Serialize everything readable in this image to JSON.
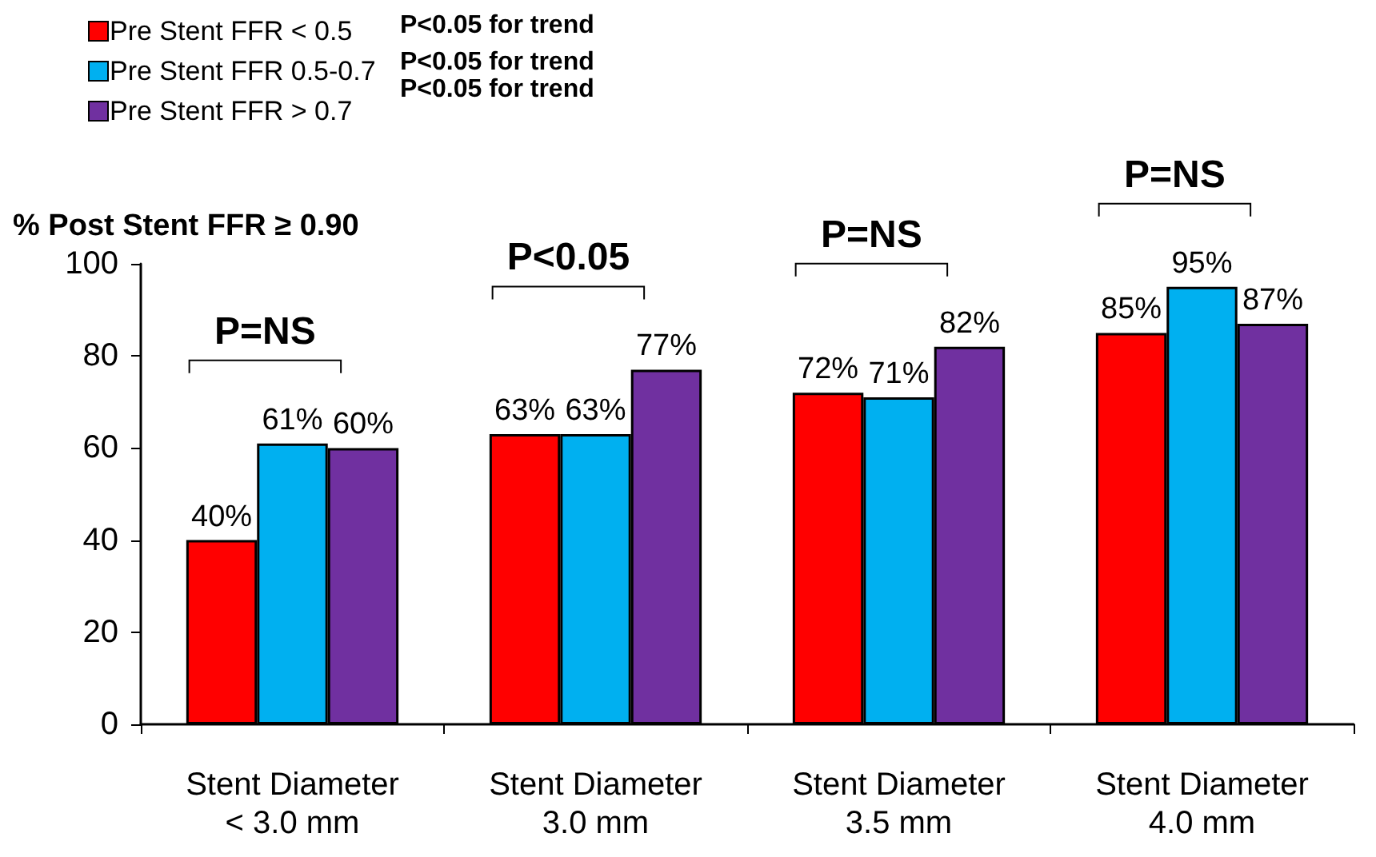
{
  "chart_data": {
    "type": "bar",
    "ylabel": "% Post Stent FFR ≥ 0.90",
    "categories": [
      "Stent Diameter\n< 3.0 mm",
      "Stent Diameter\n3.0 mm",
      "Stent Diameter\n3.5 mm",
      "Stent Diameter\n4.0 mm"
    ],
    "series": [
      {
        "name": "Pre Stent FFR < 0.5",
        "color": "#ff0000",
        "values": [
          40,
          63,
          72,
          85
        ],
        "value_labels": [
          "40%",
          "63%",
          "72%",
          "85%"
        ]
      },
      {
        "name": "Pre Stent FFR 0.5-0.7",
        "color": "#00b0f0",
        "values": [
          61,
          63,
          71,
          95
        ],
        "value_labels": [
          "61%",
          "63%",
          "71%",
          "95%"
        ]
      },
      {
        "name": "Pre Stent FFR > 0.7",
        "color": "#7030a0",
        "values": [
          60,
          77,
          82,
          87
        ],
        "value_labels": [
          "60%",
          "77%",
          "82%",
          "87%"
        ]
      }
    ],
    "ylim": [
      0,
      100
    ],
    "yticks": [
      0,
      20,
      40,
      60,
      80,
      100
    ],
    "grid": false,
    "legend": "top left",
    "annotations": [
      "P<0.05 for trend",
      "P<0.05 for trend",
      "P<0.05 for trend",
      "P=NS",
      "P<0.05",
      "P=NS",
      "P=NS"
    ]
  }
}
